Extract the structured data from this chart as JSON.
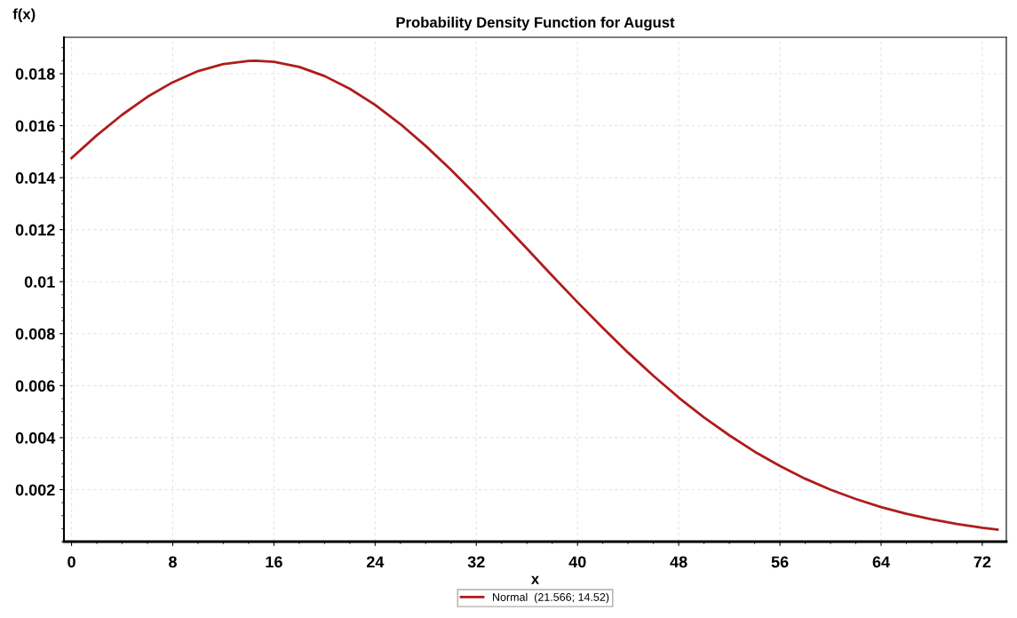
{
  "chart_data": {
    "type": "line",
    "title": "Probability Density Function for August",
    "xlabel": "x",
    "ylabel": "f(x)",
    "x": [
      0,
      2,
      4,
      6,
      8,
      10,
      12,
      14,
      14.52,
      16,
      18,
      20,
      22,
      24,
      26,
      28,
      30,
      32,
      34,
      36,
      38,
      40,
      42,
      44,
      46,
      48,
      50,
      52,
      54,
      56,
      58,
      60,
      62,
      64,
      66,
      68,
      70,
      72,
      73.2
    ],
    "series": [
      {
        "name": "Normal  (21.566; 14.52)",
        "color": "#b01c1c",
        "values": [
          0.01475,
          0.01563,
          0.01642,
          0.01711,
          0.01767,
          0.0181,
          0.01837,
          0.01849,
          0.0185,
          0.01846,
          0.01826,
          0.01791,
          0.01742,
          0.0168,
          0.01606,
          0.01522,
          0.0143,
          0.01332,
          0.0123,
          0.01127,
          0.01023,
          0.00921,
          0.00822,
          0.00727,
          0.00638,
          0.00554,
          0.00478,
          0.00409,
          0.00346,
          0.00291,
          0.00242,
          0.002,
          0.00164,
          0.00133,
          0.00107,
          0.00086,
          0.00068,
          0.00053,
          0.00046
        ]
      }
    ],
    "xlim": [
      -0.6,
      73.9
    ],
    "ylim": [
      0,
      0.0194
    ],
    "xticks": [
      0,
      8,
      16,
      24,
      32,
      40,
      48,
      56,
      64,
      72
    ],
    "yticks": [
      0.002,
      0.004,
      0.006,
      0.008,
      {
        "value": 0.01,
        "label": "0.01"
      },
      0.012,
      0.014,
      0.016,
      0.018
    ],
    "grid": true,
    "legend": "bottom",
    "marker": "none",
    "line_style": "solid"
  }
}
